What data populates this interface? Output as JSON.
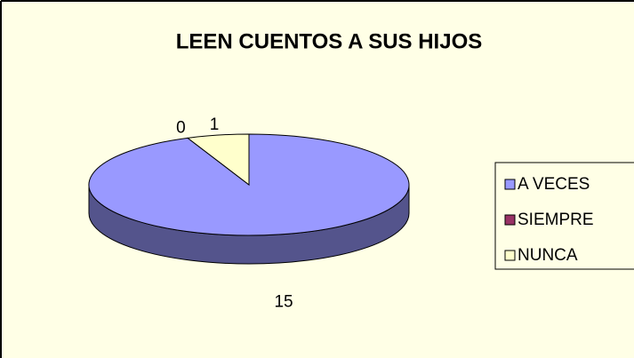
{
  "chart_data": {
    "type": "pie",
    "title": "LEEN CUENTOS A SUS HIJOS",
    "categories": [
      "A VECES",
      "SIEMPRE",
      "NUNCA"
    ],
    "values": [
      15,
      0,
      1
    ],
    "colors": [
      "#9999FF",
      "#993366",
      "#FFFFCC"
    ],
    "legend": "right"
  }
}
